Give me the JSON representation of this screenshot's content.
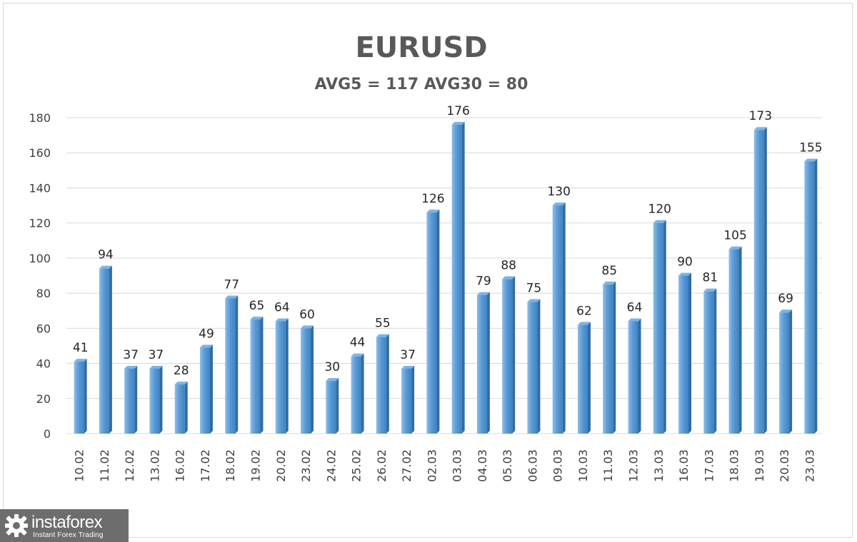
{
  "chart_data": {
    "type": "bar",
    "title": "EURUSD",
    "subtitle": "AVG5 = 117 AVG30 = 80",
    "categories": [
      "10.02",
      "11.02",
      "12.02",
      "13.02",
      "16.02",
      "17.02",
      "18.02",
      "19.02",
      "20.02",
      "23.02",
      "24.02",
      "25.02",
      "26.02",
      "27.02",
      "02.03",
      "03.03",
      "04.03",
      "05.03",
      "06.03",
      "09.03",
      "10.03",
      "11.03",
      "12.03",
      "13.03",
      "16.03",
      "17.03",
      "18.03",
      "19.03",
      "20.03",
      "23.03"
    ],
    "values": [
      41,
      94,
      37,
      37,
      28,
      49,
      77,
      65,
      64,
      60,
      30,
      44,
      55,
      37,
      126,
      176,
      79,
      88,
      75,
      130,
      62,
      85,
      64,
      120,
      90,
      81,
      105,
      173,
      69,
      155
    ],
    "ylim": [
      0,
      180
    ],
    "yticks": [
      0,
      20,
      40,
      60,
      80,
      100,
      120,
      140,
      160,
      180
    ],
    "xlabel": "",
    "ylabel": "",
    "grid": true,
    "legend": "none",
    "bar_color": "#5b9bd5",
    "bar_dark": "#2e6da4",
    "grid_color": "#d9d9d9"
  },
  "watermark": {
    "brand": "instaforex",
    "tagline": "Instant Forex Trading",
    "icon": "gear-logo-icon"
  }
}
